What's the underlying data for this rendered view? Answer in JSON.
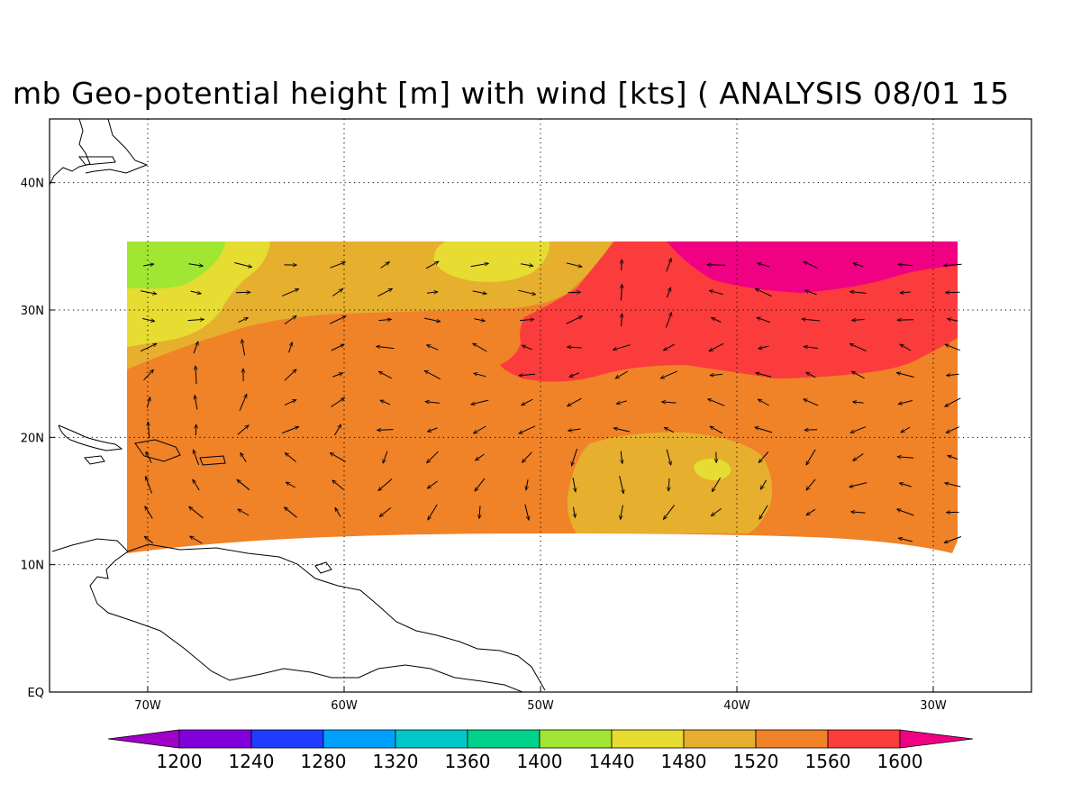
{
  "title": "mb Geo-potential height [m] with wind [kts] ( ANALYSIS 08/01 15",
  "map": {
    "lon_range": [
      -75,
      -25
    ],
    "lat_range": [
      0,
      45
    ],
    "lon_ticks": [
      {
        "lon": -70,
        "label": "70W"
      },
      {
        "lon": -60,
        "label": "60W"
      },
      {
        "lon": -50,
        "label": "50W"
      },
      {
        "lon": -40,
        "label": "40W"
      },
      {
        "lon": -30,
        "label": "30W"
      }
    ],
    "lat_ticks": [
      {
        "lat": 0,
        "label": "EQ"
      },
      {
        "lat": 10,
        "label": "10N"
      },
      {
        "lat": 20,
        "label": "20N"
      },
      {
        "lat": 30,
        "label": "30N"
      },
      {
        "lat": 40,
        "label": "40N"
      }
    ],
    "grid": "dotted"
  },
  "colorbar": {
    "levels": [
      "1200",
      "1240",
      "1280",
      "1320",
      "1360",
      "1400",
      "1440",
      "1480",
      "1520",
      "1560",
      "1600"
    ],
    "colors": [
      "#a000c8",
      "#8200dc",
      "#1e3cff",
      "#00a0ff",
      "#00c8c8",
      "#00d28c",
      "#a0e632",
      "#e6dc32",
      "#e6af2d",
      "#f08228",
      "#fa3c3c",
      "#f00082"
    ]
  },
  "colors": {
    "c1440": "#a0e632",
    "c1480": "#e6dc32",
    "c1520": "#e6af2d",
    "c1560": "#f08228",
    "c1600": "#fa3c3c",
    "c1640": "#f00082"
  }
}
